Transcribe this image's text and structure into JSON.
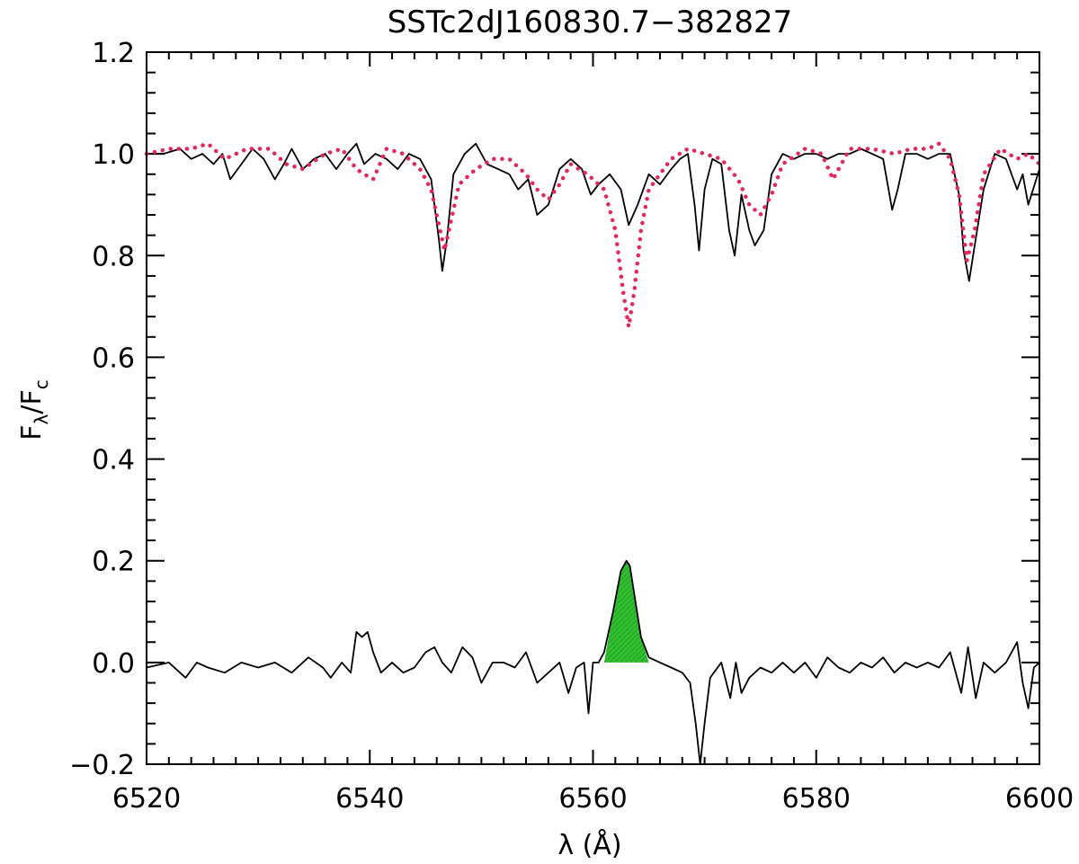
{
  "chart_data": {
    "type": "line",
    "title": "SSTc2dJ160830.7−382827",
    "xlabel": "λ (Å)",
    "ylabel_main": "F",
    "ylabel_sub1": "λ",
    "ylabel_slash": "/F",
    "ylabel_sub2": "c",
    "xlim": [
      6520,
      6600
    ],
    "ylim": [
      -0.2,
      1.2
    ],
    "x_ticks": [
      6520,
      6540,
      6560,
      6580,
      6600
    ],
    "x_tick_labels": [
      "6520",
      "6540",
      "6560",
      "6580",
      "6600"
    ],
    "y_ticks": [
      -0.2,
      0.0,
      0.2,
      0.4,
      0.6,
      0.8,
      1.0,
      1.2
    ],
    "y_tick_labels": [
      "−0.2",
      "0.0",
      "0.2",
      "0.4",
      "0.6",
      "0.8",
      "1.0",
      "1.2"
    ],
    "x_minor_step": 2,
    "y_minor_step": 0.04,
    "grid": false,
    "colors": {
      "observed": "#000000",
      "template": "#e8245c",
      "emission_fill": "#2fbf2f"
    },
    "series": [
      {
        "key": "observed",
        "style": "solid",
        "x": [
          6520.0,
          6521.5,
          6523.0,
          6524.0,
          6525.0,
          6526.0,
          6526.8,
          6527.5,
          6528.5,
          6529.5,
          6530.5,
          6531.5,
          6532.3,
          6533.0,
          6534.0,
          6535.0,
          6536.0,
          6537.0,
          6538.0,
          6538.8,
          6539.5,
          6540.5,
          6541.5,
          6542.5,
          6543.5,
          6544.5,
          6545.5,
          6546.2,
          6546.5,
          6546.9,
          6547.5,
          6548.5,
          6549.5,
          6550.5,
          6551.5,
          6552.5,
          6553.3,
          6554.2,
          6555.0,
          6556.0,
          6557.0,
          6558.0,
          6559.0,
          6559.8,
          6560.5,
          6561.5,
          6562.5,
          6563.2,
          6564.0,
          6565.0,
          6566.0,
          6567.0,
          6567.8,
          6568.5,
          6569.1,
          6569.5,
          6570.0,
          6570.7,
          6571.5,
          6572.2,
          6572.7,
          6573.3,
          6574.0,
          6574.5,
          6575.3,
          6576.0,
          6577.0,
          6578.0,
          6579.0,
          6580.0,
          6581.0,
          6582.0,
          6583.0,
          6584.0,
          6585.0,
          6586.0,
          6586.8,
          6587.3,
          6588.0,
          6589.0,
          6590.0,
          6591.0,
          6592.0,
          6592.8,
          6593.2,
          6593.7,
          6594.2,
          6595.0,
          6596.0,
          6597.0,
          6598.0,
          6598.5,
          6599.0,
          6600.0
        ],
        "y": [
          1.0,
          1.0,
          1.01,
          0.99,
          1.0,
          0.98,
          1.0,
          0.95,
          0.98,
          1.01,
          0.99,
          0.95,
          0.98,
          1.01,
          0.97,
          0.99,
          1.0,
          0.97,
          1.0,
          1.02,
          0.98,
          1.0,
          0.99,
          0.97,
          1.0,
          0.99,
          0.95,
          0.83,
          0.77,
          0.83,
          0.96,
          1.0,
          1.02,
          0.98,
          0.97,
          0.96,
          0.93,
          0.95,
          0.88,
          0.9,
          0.97,
          0.99,
          0.97,
          0.92,
          0.94,
          0.96,
          0.93,
          0.86,
          0.9,
          0.96,
          0.94,
          0.97,
          0.99,
          1.0,
          0.9,
          0.81,
          0.93,
          0.99,
          0.98,
          0.85,
          0.8,
          0.92,
          0.85,
          0.82,
          0.85,
          0.96,
          1.0,
          0.99,
          1.0,
          1.0,
          0.99,
          1.0,
          1.0,
          1.01,
          1.0,
          0.99,
          0.89,
          0.93,
          1.0,
          1.0,
          0.99,
          1.0,
          1.0,
          0.92,
          0.81,
          0.75,
          0.82,
          0.93,
          1.0,
          0.99,
          0.93,
          0.96,
          0.9,
          0.97
        ]
      },
      {
        "key": "template",
        "style": "dotted",
        "x": [
          6520.0,
          6522.0,
          6524.0,
          6525.5,
          6527.0,
          6529.0,
          6531.0,
          6532.5,
          6534.0,
          6536.0,
          6537.5,
          6538.8,
          6539.5,
          6540.3,
          6541.5,
          6543.0,
          6544.5,
          6545.5,
          6546.2,
          6546.7,
          6547.2,
          6548.0,
          6549.5,
          6551.0,
          6552.5,
          6554.0,
          6555.0,
          6556.0,
          6557.0,
          6558.0,
          6559.5,
          6561.0,
          6562.0,
          6562.7,
          6563.2,
          6563.7,
          6564.3,
          6565.0,
          6566.0,
          6567.0,
          6568.5,
          6570.0,
          6571.5,
          6573.0,
          6574.0,
          6575.0,
          6576.0,
          6577.0,
          6579.0,
          6580.5,
          6581.5,
          6583.0,
          6585.0,
          6587.0,
          6588.5,
          6590.0,
          6591.0,
          6592.0,
          6592.8,
          6593.5,
          6594.2,
          6595.0,
          6596.5,
          6598.0,
          6599.0,
          6600.0
        ],
        "y": [
          1.0,
          1.01,
          1.01,
          1.02,
          0.99,
          1.01,
          1.01,
          0.98,
          0.97,
          1.0,
          1.01,
          0.97,
          0.96,
          0.95,
          1.01,
          1.0,
          0.97,
          0.93,
          0.86,
          0.81,
          0.86,
          0.94,
          0.97,
          0.99,
          0.99,
          0.96,
          0.93,
          0.91,
          0.94,
          0.98,
          0.96,
          0.93,
          0.85,
          0.73,
          0.66,
          0.73,
          0.85,
          0.93,
          0.96,
          0.99,
          1.01,
          1.0,
          0.99,
          0.95,
          0.9,
          0.88,
          0.92,
          0.98,
          1.01,
          1.0,
          0.95,
          1.01,
          1.01,
          1.0,
          1.01,
          1.01,
          1.02,
          0.99,
          0.92,
          0.79,
          0.85,
          0.96,
          1.01,
          0.99,
          1.0,
          0.98
        ]
      },
      {
        "key": "residual",
        "style": "solid",
        "x": [
          6520.0,
          6522.0,
          6523.5,
          6524.5,
          6525.5,
          6527.0,
          6528.5,
          6530.0,
          6531.5,
          6533.0,
          6534.5,
          6535.8,
          6536.5,
          6537.5,
          6538.3,
          6538.8,
          6539.3,
          6539.8,
          6540.3,
          6541.0,
          6542.0,
          6543.0,
          6544.0,
          6545.0,
          6545.8,
          6546.5,
          6547.3,
          6548.3,
          6549.2,
          6550.0,
          6551.0,
          6552.0,
          6553.0,
          6554.0,
          6555.0,
          6556.0,
          6557.0,
          6557.8,
          6558.5,
          6559.2,
          6559.6,
          6560.0,
          6560.5,
          6561.0,
          6561.8,
          6562.5,
          6563.0,
          6563.3,
          6563.8,
          6564.3,
          6565.0,
          6566.0,
          6567.0,
          6568.0,
          6568.7,
          6569.2,
          6569.6,
          6570.0,
          6570.5,
          6571.5,
          6572.3,
          6572.8,
          6573.3,
          6574.0,
          6575.0,
          6576.0,
          6577.0,
          6578.0,
          6579.0,
          6580.0,
          6581.0,
          6582.0,
          6583.0,
          6584.0,
          6585.0,
          6586.0,
          6587.0,
          6588.0,
          6589.0,
          6590.0,
          6591.0,
          6592.0,
          6593.0,
          6593.6,
          6594.3,
          6595.0,
          6596.0,
          6597.0,
          6598.0,
          6598.5,
          6599.0,
          6599.5,
          6600.0
        ],
        "y": [
          -0.01,
          0.0,
          -0.03,
          0.0,
          -0.01,
          -0.02,
          0.0,
          -0.01,
          0.0,
          -0.02,
          0.01,
          -0.01,
          -0.03,
          0.0,
          -0.02,
          0.06,
          0.05,
          0.06,
          0.02,
          -0.02,
          0.0,
          -0.02,
          -0.01,
          0.02,
          0.03,
          0.0,
          -0.02,
          0.03,
          0.01,
          -0.04,
          0.0,
          0.0,
          -0.01,
          0.02,
          -0.04,
          -0.02,
          0.0,
          -0.06,
          -0.01,
          0.0,
          -0.1,
          0.0,
          0.0,
          0.02,
          0.1,
          0.18,
          0.2,
          0.19,
          0.12,
          0.05,
          0.01,
          0.0,
          -0.01,
          -0.02,
          -0.04,
          -0.12,
          -0.2,
          -0.12,
          -0.03,
          0.0,
          -0.07,
          0.0,
          -0.06,
          -0.03,
          -0.01,
          -0.02,
          0.0,
          -0.02,
          0.0,
          -0.03,
          0.01,
          -0.01,
          -0.02,
          0.0,
          -0.01,
          0.01,
          -0.02,
          0.0,
          -0.01,
          0.0,
          -0.01,
          0.02,
          -0.06,
          0.03,
          -0.07,
          0.0,
          -0.02,
          0.0,
          0.04,
          -0.04,
          -0.09,
          -0.01,
          0.0
        ]
      }
    ],
    "emission_fill": {
      "x": [
        6561.0,
        6561.8,
        6562.5,
        6563.0,
        6563.3,
        6563.8,
        6564.3,
        6565.0
      ],
      "y": [
        0.0,
        0.1,
        0.18,
        0.2,
        0.19,
        0.12,
        0.05,
        0.0
      ]
    }
  }
}
